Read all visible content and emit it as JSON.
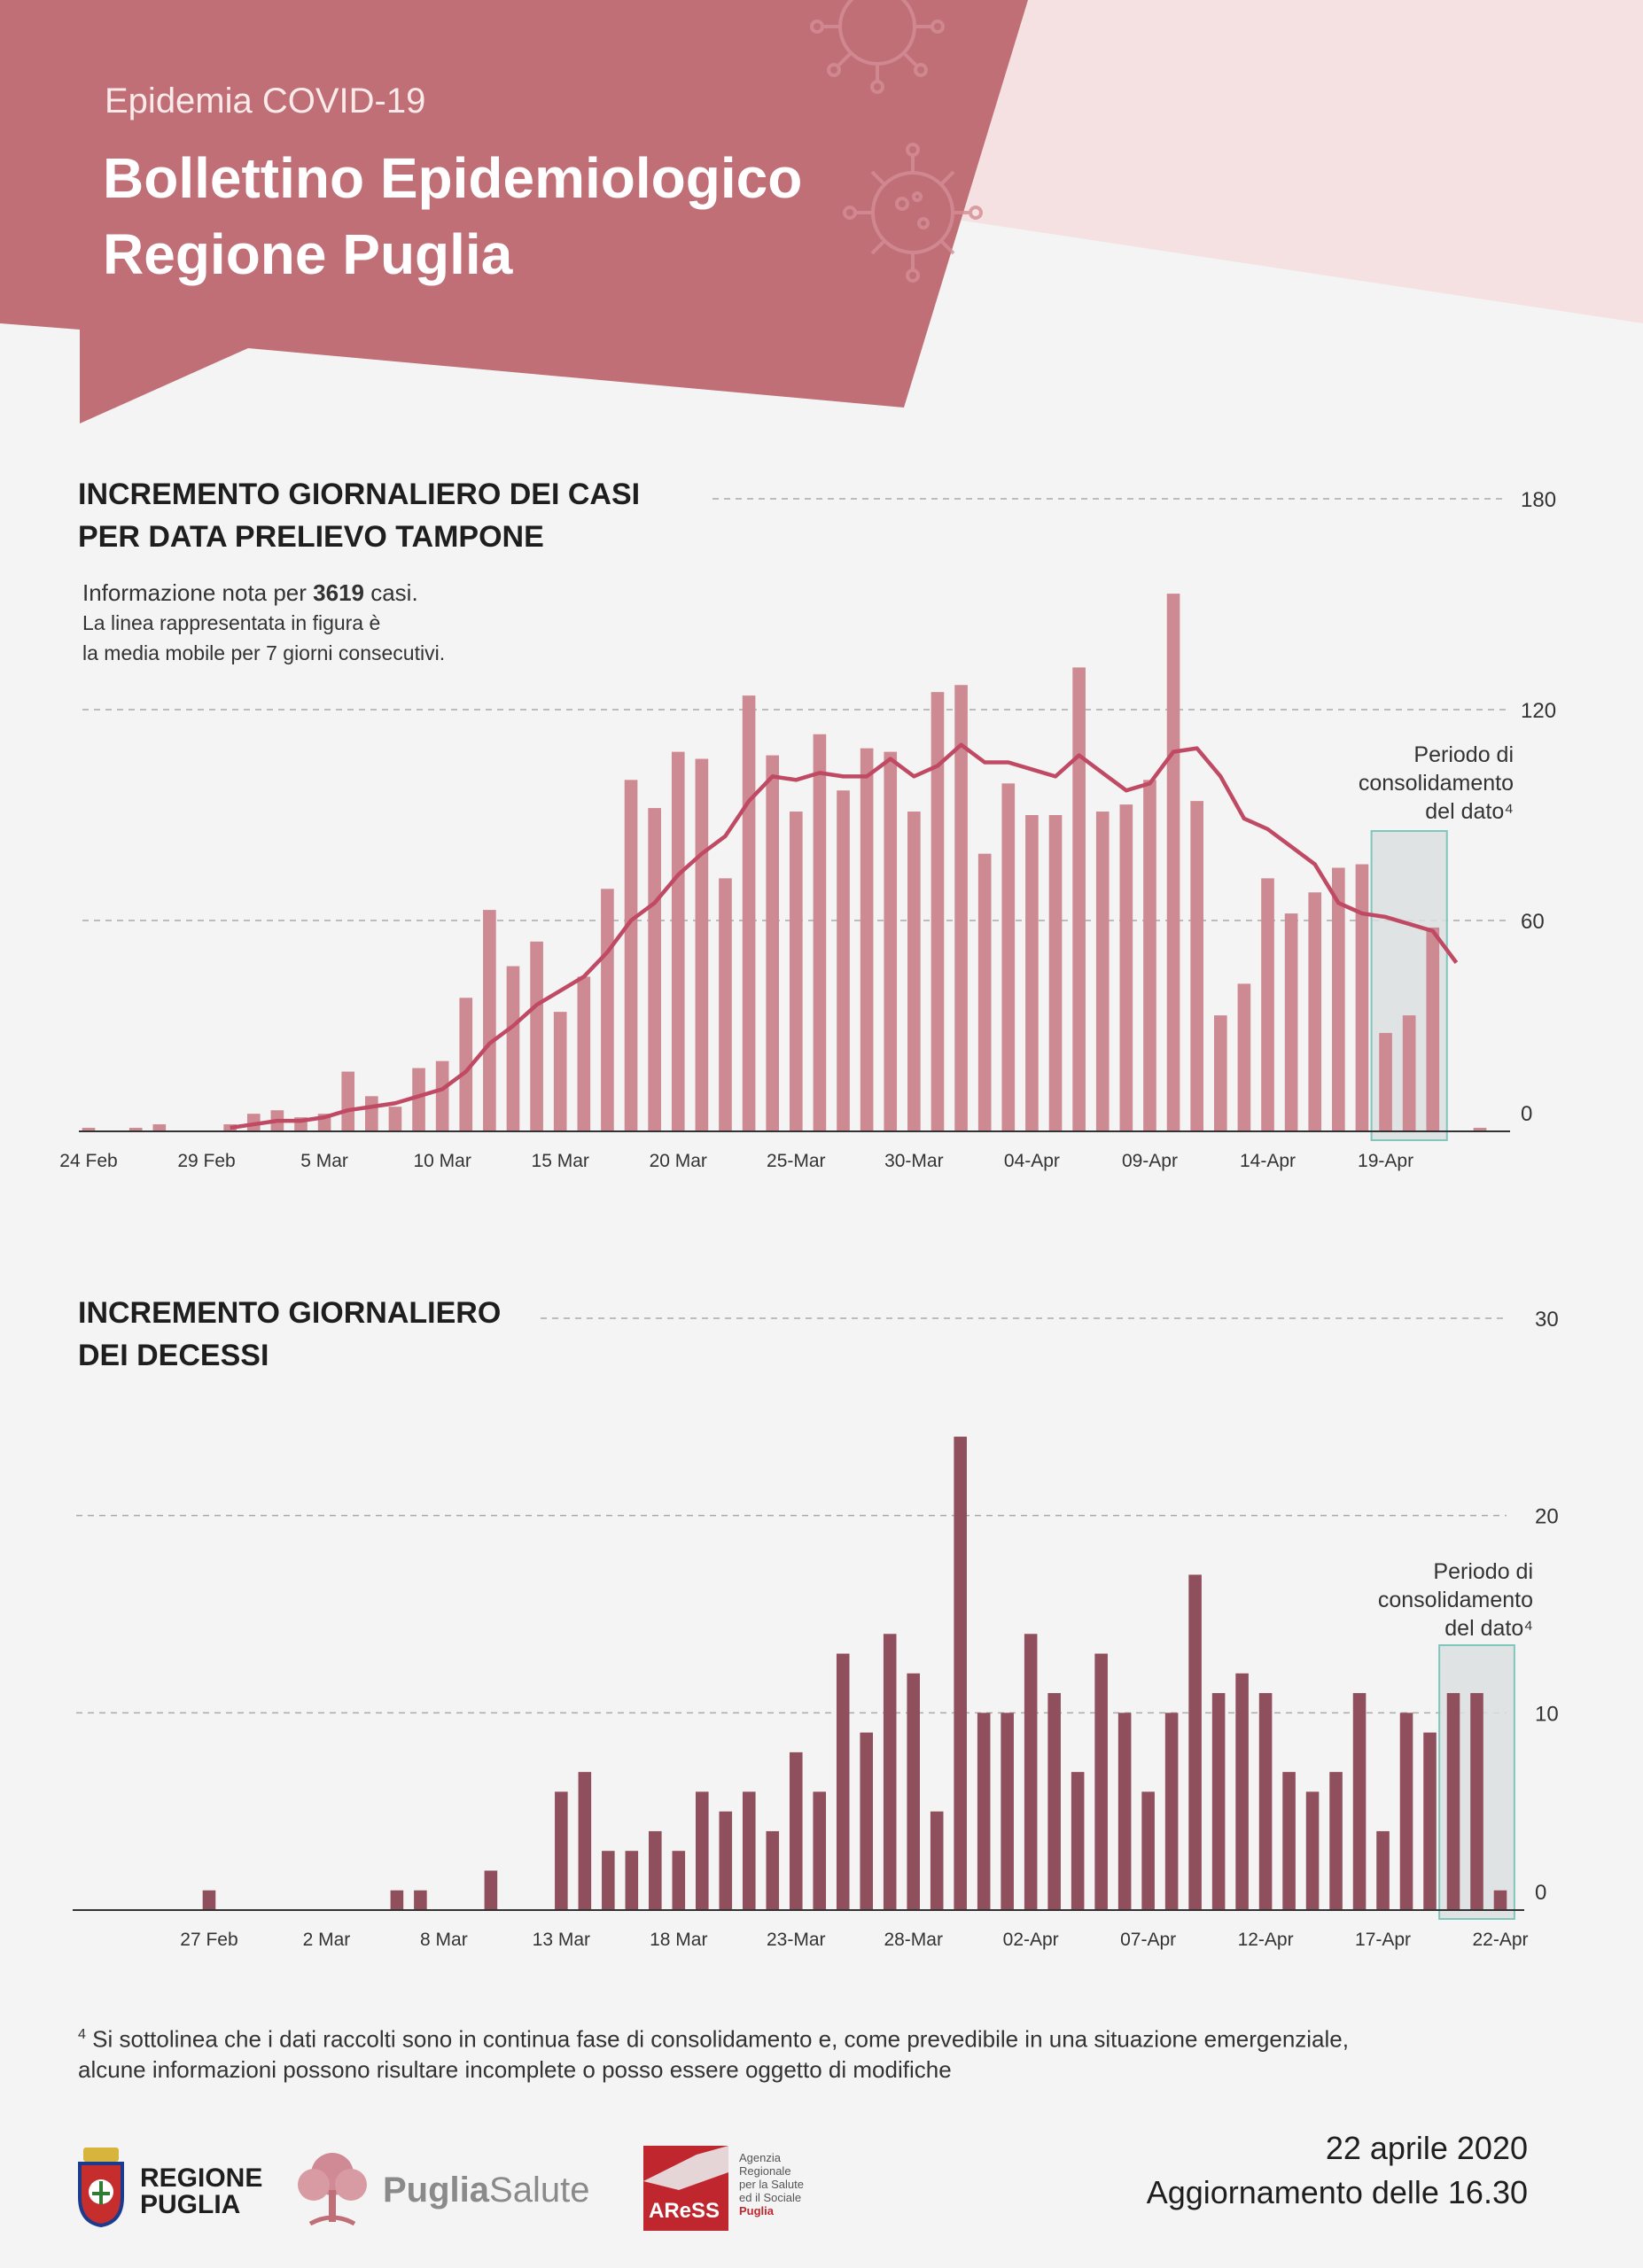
{
  "header": {
    "subtitle": "Epidemia COVID-19",
    "title_line1": "Bollettino Epidemiologico",
    "title_line2": "Regione Puglia"
  },
  "colors": {
    "banner": "#c06f77",
    "banner_light": "#f5e1e1",
    "cases_bar": "#cd8a92",
    "cases_line": "#c04a63",
    "deaths_bar": "#8f4f5c",
    "consolidation_box": "#7fc6bd"
  },
  "cases_section": {
    "title_line1": "INCREMENTO GIORNALIERO DEI CASI",
    "title_line2": "PER DATA PRELIEVO TAMPONE",
    "info_prefix": "Informazione nota per ",
    "info_count": "3619",
    "info_suffix": " casi.",
    "info_line2": "La linea rappresentata in figura è",
    "info_line3": "la media mobile per 7 giorni consecutivi."
  },
  "deaths_section": {
    "title_line1": "INCREMENTO GIORNALIERO",
    "title_line2": "DEI DECESSI"
  },
  "chart_data": [
    {
      "type": "bar",
      "title": "INCREMENTO GIORNALIERO DEI CASI PER DATA PRELIEVO TAMPONE",
      "x_start": "24 Feb",
      "x_end": "22 Apr",
      "tick_labels": [
        "24 Feb",
        "29 Feb",
        "5 Mar",
        "10 Mar",
        "15 Mar",
        "20 Mar",
        "25-Mar",
        "30-Mar",
        "04-Apr",
        "09-Apr",
        "14-Apr",
        "19-Apr"
      ],
      "tick_index": [
        0,
        5,
        10,
        15,
        20,
        25,
        30,
        35,
        40,
        45,
        50,
        55
      ],
      "y_ticks": [
        0,
        60,
        120,
        180
      ],
      "ylim": [
        0,
        180
      ],
      "grid": true,
      "values": [
        1,
        0,
        1,
        2,
        0,
        0,
        2,
        5,
        6,
        4,
        5,
        17,
        10,
        7,
        18,
        20,
        38,
        63,
        47,
        54,
        34,
        44,
        69,
        100,
        92,
        108,
        106,
        72,
        124,
        107,
        91,
        113,
        97,
        109,
        108,
        91,
        125,
        127,
        79,
        99,
        90,
        90,
        132,
        91,
        93,
        100,
        153,
        94,
        33,
        42,
        72,
        62,
        68,
        75,
        76,
        28,
        33,
        58,
        0,
        1
      ],
      "series": [
        {
          "name": "media mobile per 7 giorni",
          "type": "line",
          "start_index": 6,
          "values": [
            1,
            2,
            3,
            3,
            4,
            6,
            7,
            8,
            10,
            12,
            17,
            25,
            30,
            36,
            40,
            44,
            51,
            60,
            65,
            73,
            79,
            84,
            94,
            101,
            100,
            102,
            101,
            101,
            106,
            101,
            104,
            110,
            105,
            105,
            103,
            101,
            107,
            102,
            97,
            99,
            108,
            109,
            101,
            89,
            86,
            81,
            76,
            65,
            62,
            61,
            59,
            57,
            48
          ]
        }
      ],
      "annotation": "Periodo di consolidamento del dato⁴"
    },
    {
      "type": "bar",
      "title": "INCREMENTO GIORNALIERO DEI DECESSI",
      "x_start": "25 Feb",
      "x_end": "22 Apr",
      "tick_labels": [
        "27 Feb",
        "2 Mar",
        "8 Mar",
        "13 Mar",
        "18 Mar",
        "23-Mar",
        "28-Mar",
        "02-Apr",
        "07-Apr",
        "12-Apr",
        "17-Apr",
        "22-Apr"
      ],
      "tick_index": [
        4,
        9,
        14,
        19,
        24,
        29,
        34,
        39,
        44,
        49,
        54,
        59
      ],
      "y_ticks": [
        0,
        10,
        20,
        30
      ],
      "ylim": [
        0,
        30
      ],
      "grid": true,
      "values": [
        0,
        0,
        0,
        0,
        1,
        0,
        0,
        0,
        0,
        0,
        0,
        0,
        1,
        1,
        0,
        0,
        2,
        0,
        0,
        6,
        7,
        3,
        3,
        4,
        3,
        6,
        5,
        6,
        4,
        8,
        6,
        13,
        9,
        14,
        12,
        5,
        24,
        10,
        10,
        14,
        11,
        7,
        13,
        10,
        6,
        10,
        17,
        11,
        12,
        11,
        7,
        6,
        7,
        11,
        4,
        10,
        9,
        11,
        11,
        1
      ],
      "annotation": "Periodo di consolidamento del dato⁴"
    }
  ],
  "footnote": {
    "marker": "4",
    "line1": "Si sottolinea che i dati raccolti sono in continua fase di consolidamento e, come prevedibile in una situazione emergenziale,",
    "line2": "alcune informazioni possono risultare incomplete o posso essere oggetto di modifiche"
  },
  "footer": {
    "regione_line1": "REGIONE",
    "regione_line2": "PUGLIA",
    "puglia_bold": "Puglia",
    "salute": "Salute",
    "aress_mark": "AReSS",
    "aress_lines": [
      "Agenzia",
      "Regionale",
      "per la Salute",
      "ed il Sociale",
      "Puglia"
    ],
    "date": "22 aprile 2020",
    "update": "Aggiornamento delle 16.30"
  }
}
